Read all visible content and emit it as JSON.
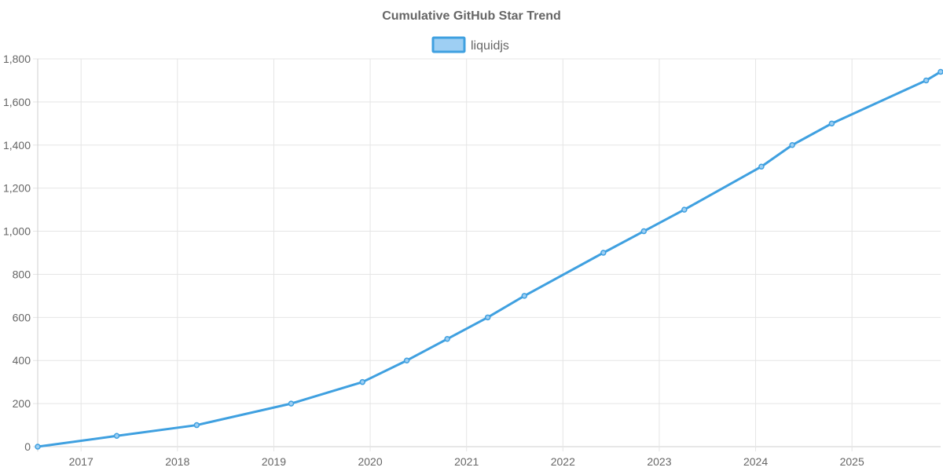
{
  "chart_data": {
    "type": "line",
    "title": "Cumulative GitHub Star Trend",
    "xlabel": "",
    "ylabel": "",
    "xlim": [
      2016.55,
      2025.92
    ],
    "ylim": [
      0,
      1800
    ],
    "grid": true,
    "legend_position": "top-center",
    "x_ticks": [
      2017,
      2018,
      2019,
      2020,
      2021,
      2022,
      2023,
      2024,
      2025
    ],
    "x_tick_labels": [
      "2017",
      "2018",
      "2019",
      "2020",
      "2021",
      "2022",
      "2023",
      "2024",
      "2025"
    ],
    "y_ticks": [
      0,
      200,
      400,
      600,
      800,
      1000,
      1200,
      1400,
      1600,
      1800
    ],
    "y_tick_labels": [
      "0",
      "200",
      "400",
      "600",
      "800",
      "1,000",
      "1,200",
      "1,400",
      "1,600",
      "1,800"
    ],
    "series": [
      {
        "name": "liquidjs",
        "color": "#3fa0e0",
        "fill_color": "#9ecff3",
        "x": [
          2016.55,
          2017.37,
          2018.2,
          2019.18,
          2019.92,
          2020.38,
          2020.8,
          2021.22,
          2021.6,
          2022.42,
          2022.84,
          2023.26,
          2024.06,
          2024.38,
          2024.79,
          2025.77,
          2025.92
        ],
        "y": [
          0,
          50,
          100,
          200,
          300,
          400,
          500,
          600,
          700,
          900,
          1000,
          1100,
          1300,
          1400,
          1500,
          1700,
          1740
        ]
      }
    ]
  }
}
